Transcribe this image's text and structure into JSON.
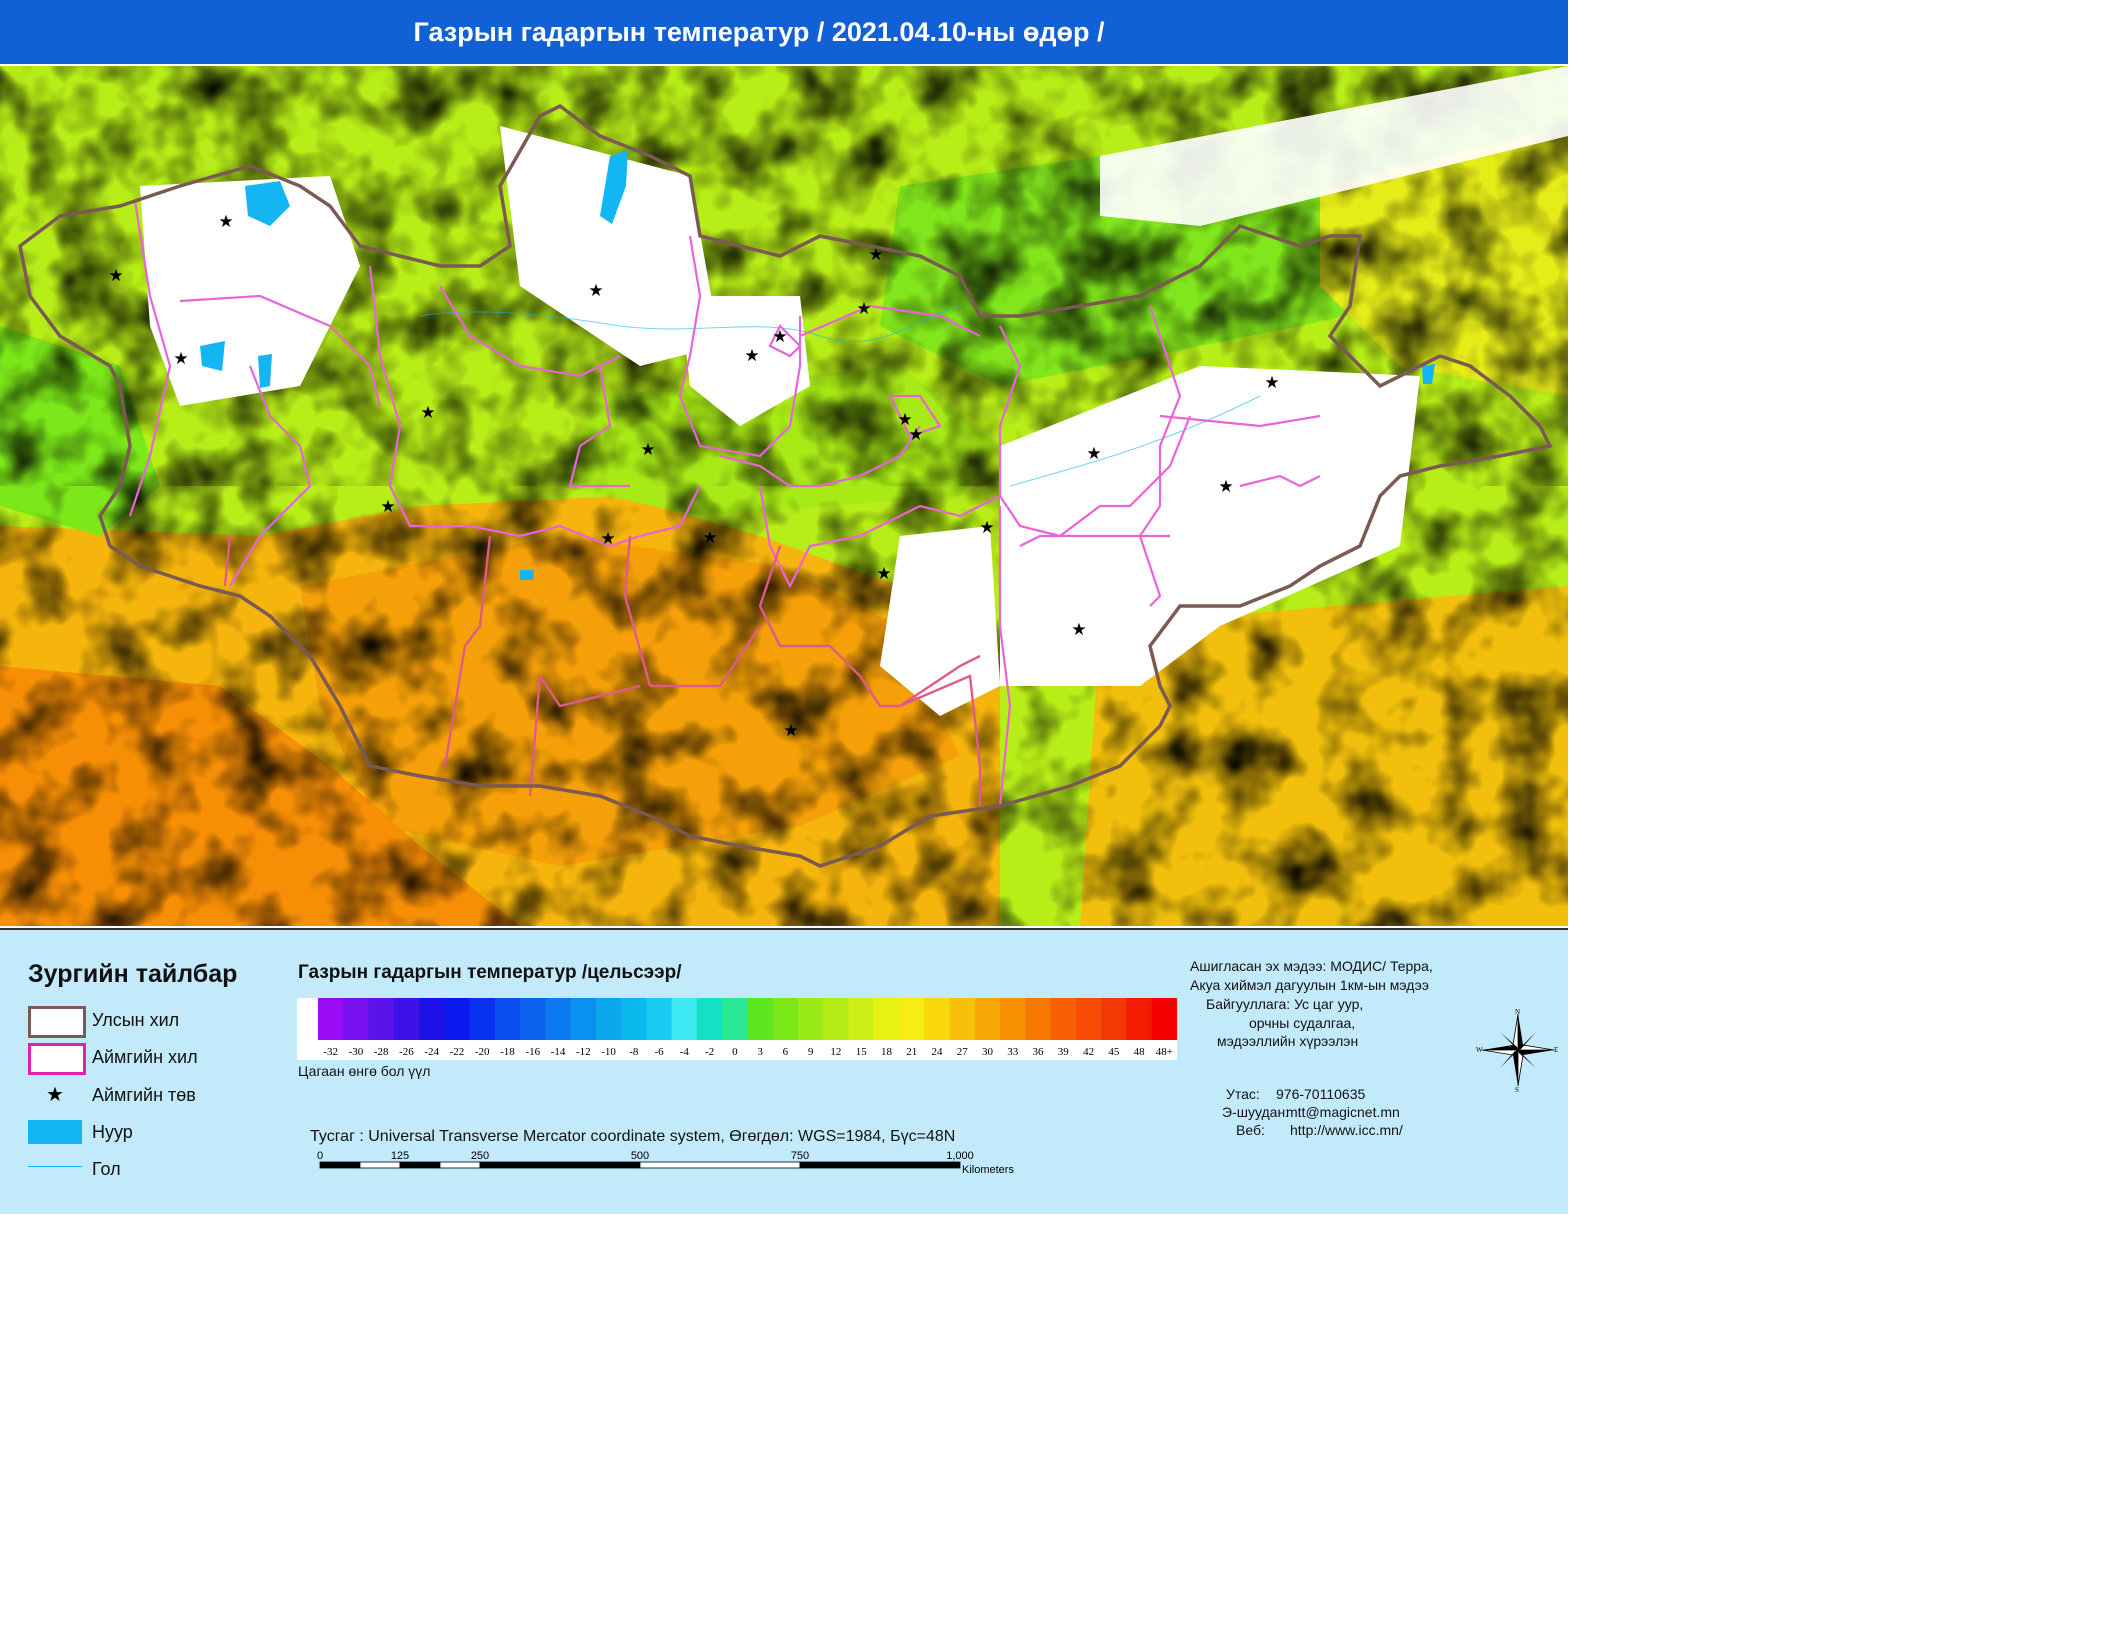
{
  "title": "Газрын гадаргын температур / 2021.04.10-ны өдөр /",
  "legend": {
    "title": "Зургийн тайлбар",
    "items": [
      {
        "label": "Улсын хил",
        "icon": "national-border-swatch",
        "color": "#7a5a52"
      },
      {
        "label": "Аймгийн хил",
        "icon": "province-border-swatch",
        "color": "#e21fb0"
      },
      {
        "label": "Аймгийн төв",
        "icon": "star-icon",
        "color": "#000000"
      },
      {
        "label": "Нуур",
        "icon": "lake-swatch",
        "color": "#13b5f2"
      },
      {
        "label": "Гол",
        "icon": "river-line",
        "color": "#13b5f2"
      }
    ]
  },
  "colorbar": {
    "title": "Газрын гадаргын температур /цельсээр/",
    "ticks": [
      "-32",
      "-30",
      "-28",
      "-26",
      "-24",
      "-22",
      "-20",
      "-18",
      "-16",
      "-14",
      "-12",
      "-10",
      "-8",
      "-6",
      "-4",
      "-2",
      "0",
      "3",
      "6",
      "9",
      "12",
      "15",
      "18",
      "21",
      "24",
      "27",
      "30",
      "33",
      "36",
      "39",
      "42",
      "45",
      "48",
      "48+"
    ],
    "colors": [
      "#ffffff",
      "#9a0cf5",
      "#7a10f0",
      "#5a14ea",
      "#3c12e6",
      "#2010e8",
      "#0a18ee",
      "#0a32f0",
      "#0a4cf0",
      "#0a62ee",
      "#0a7aee",
      "#0a90ee",
      "#0aa6ee",
      "#0ab8ee",
      "#18ccf2",
      "#3ee8f0",
      "#14e0c4",
      "#28e896",
      "#5ee61e",
      "#7ce81a",
      "#9aea18",
      "#b4ec16",
      "#cef016",
      "#e6f214",
      "#f6ee12",
      "#f8d80c",
      "#f8c00a",
      "#f8a806",
      "#f89004",
      "#f87804",
      "#f86004",
      "#f84c04",
      "#f43804",
      "#f21c02",
      "#f80000"
    ],
    "note": "Цагаан өнгө бол үүл"
  },
  "projection": "Тусгаг : Universal Transverse Mercator coordinate system, Өгөгдөл: WGS=1984, Бүс=48N",
  "scalebar": {
    "labels": [
      "0",
      "125",
      "250",
      "500",
      "750",
      "1,000"
    ],
    "unit": "Kilometers"
  },
  "info": {
    "source": [
      "Ашигласан эх мэдээ: МОДИС/ Терра,",
      "Акуа хиймэл дагуулын 1км-ын мэдээ"
    ],
    "organization": [
      "Байгууллага: Ус цаг уур,",
      "орчны судалгаа,",
      "мэдээллийн хүрээлэн"
    ],
    "phone_label": "Утас:",
    "phone": "976-70110635",
    "email_label": "Э-шуудан:",
    "email": "mtt@magicnet.mn",
    "web_label": "Веб:",
    "web": "http://www.icc.mn/"
  },
  "compass": {
    "n": "N",
    "s": "S",
    "e": "E",
    "w": "W"
  }
}
